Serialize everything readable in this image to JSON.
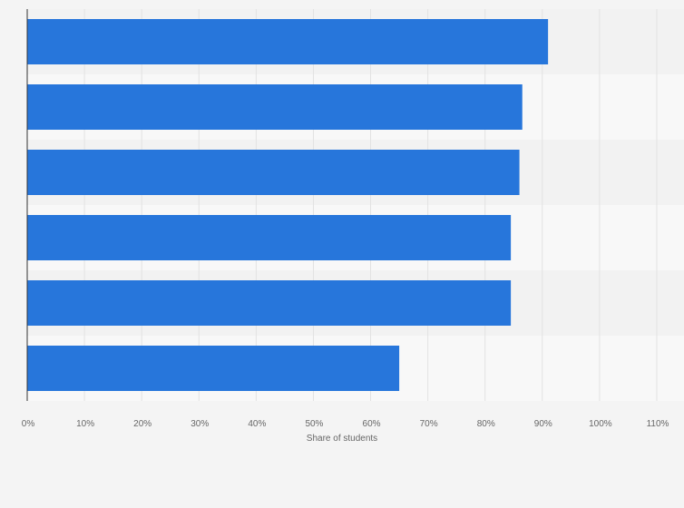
{
  "chart_data": {
    "type": "bar",
    "orientation": "horizontal",
    "categories": [
      "",
      "",
      "",
      "",
      "",
      ""
    ],
    "values": [
      91,
      86.5,
      86,
      84.5,
      84.5,
      65
    ],
    "xlabel": "Share of students",
    "ylabel": "",
    "xlim": [
      0,
      110
    ],
    "x_ticks": [
      "0%",
      "10%",
      "20%",
      "30%",
      "40%",
      "50%",
      "60%",
      "70%",
      "80%",
      "90%",
      "100%",
      "110%"
    ],
    "grid": true,
    "legend": "none",
    "bar_color": "#2776db"
  },
  "colors": {
    "background": "#f4f4f4",
    "band_dark": "#f2f2f2",
    "band_light": "#f8f8f8",
    "grid": "#e2e2e2",
    "axis": "#333333"
  }
}
